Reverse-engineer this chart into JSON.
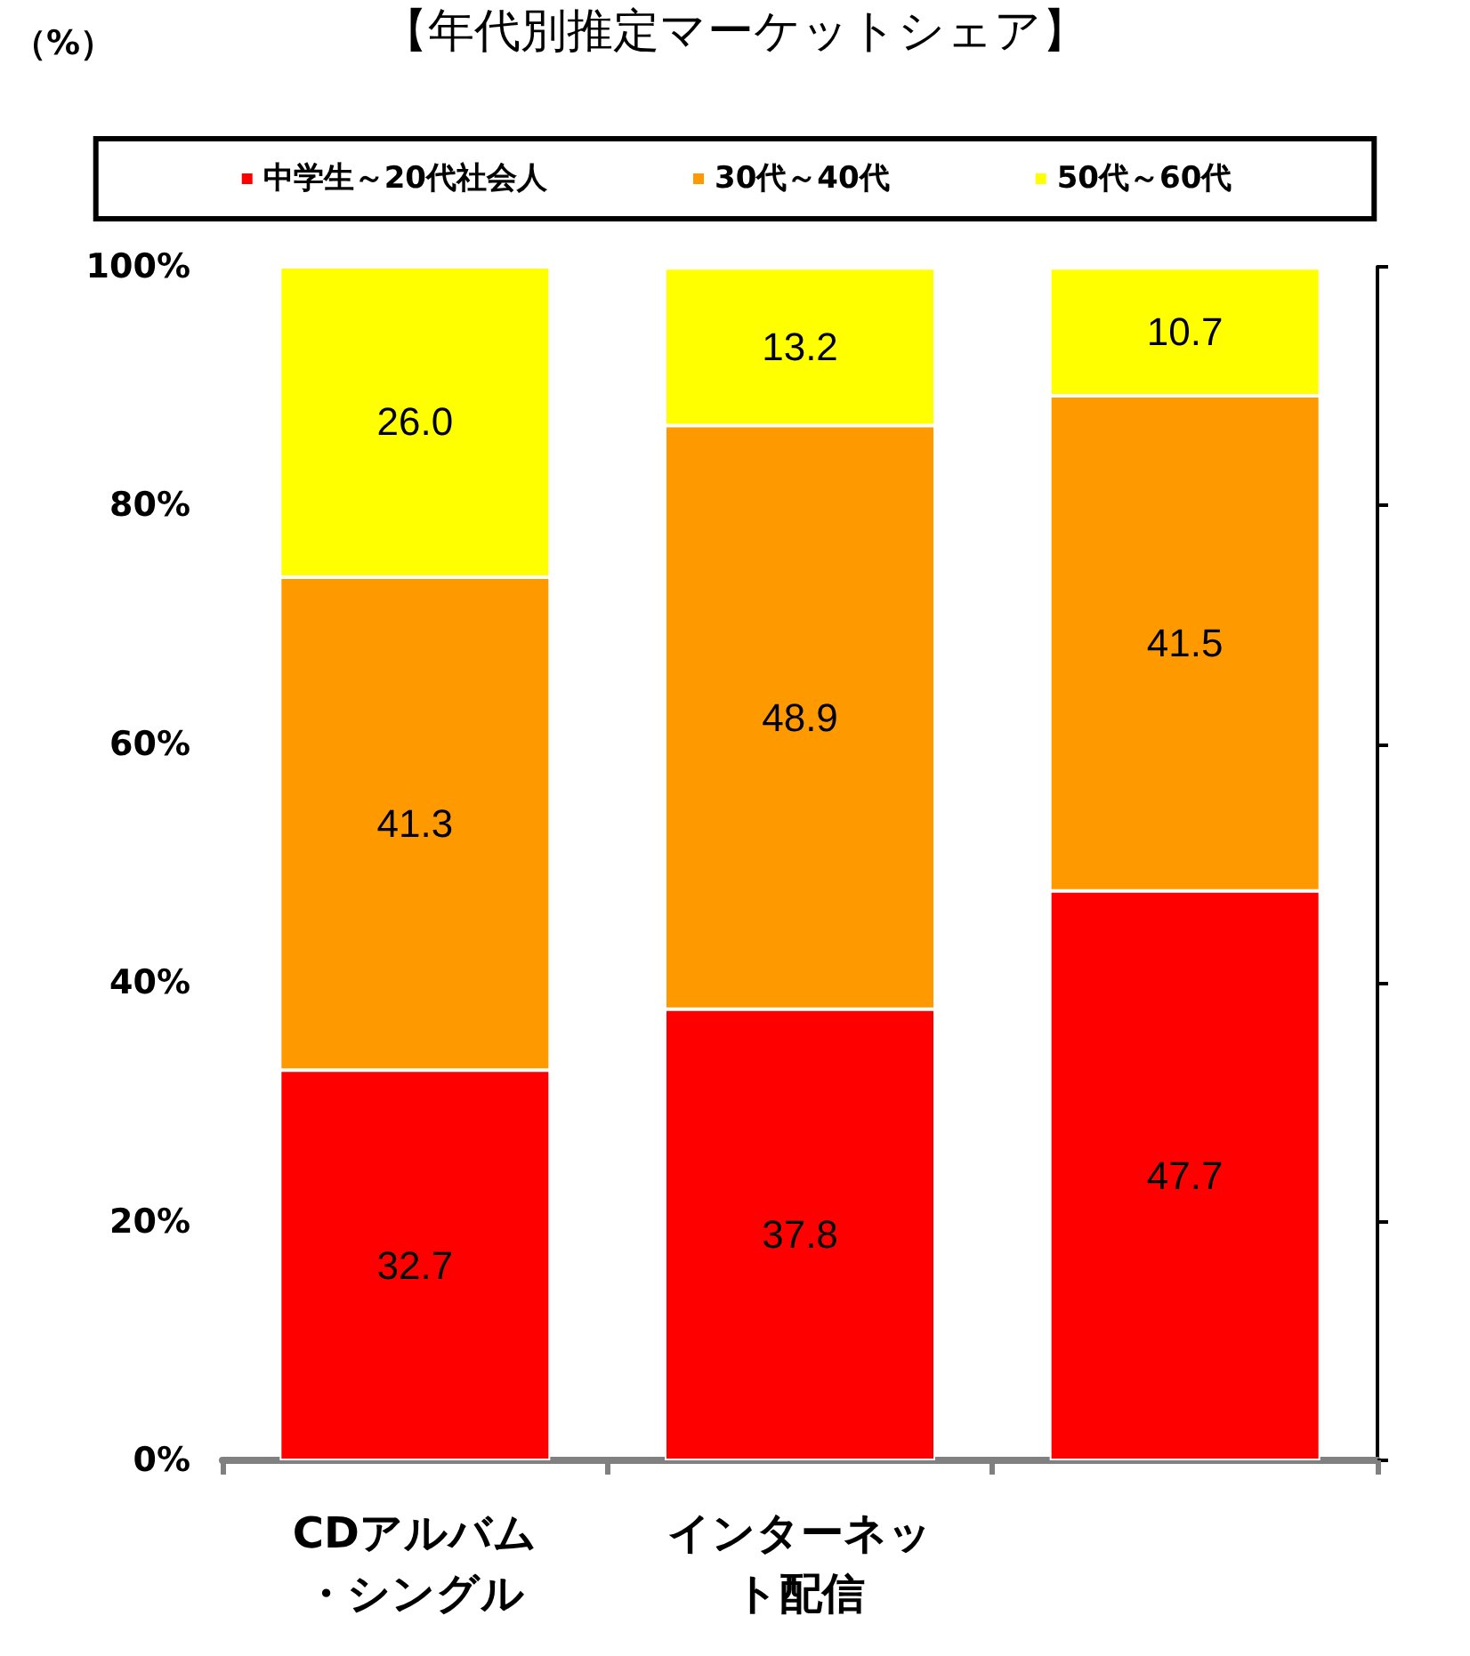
{
  "chart_data": {
    "type": "bar",
    "title": "【年代別推定マーケットシェア】",
    "annotations": [
      "（%）"
    ],
    "categories": [
      "CDアルバム・シングル",
      "インターネット配信",
      null
    ],
    "stacked": true,
    "grid": false,
    "legend": "top",
    "ylim": [
      0,
      100
    ],
    "yticks": [
      {
        "value": 0,
        "label": "0%"
      },
      {
        "value": 20,
        "label": "20%"
      },
      {
        "value": 40,
        "label": "40%"
      },
      {
        "value": 60,
        "label": "60%"
      },
      {
        "value": 80,
        "label": "80%"
      },
      {
        "value": 100,
        "label": "100%"
      }
    ],
    "series": [
      {
        "name": "中学生～20代社会人",
        "color": "#ff0000",
        "values": [
          32.7,
          37.8,
          47.7
        ],
        "value_labels": [
          "32.7",
          "37.8",
          "47.7"
        ]
      },
      {
        "name": "30代～40代",
        "color": "#ff9900",
        "values": [
          41.3,
          48.9,
          41.5
        ],
        "value_labels": [
          "41.3",
          "48.9",
          "41.5"
        ]
      },
      {
        "name": "50代～60代",
        "color": "#ffff00",
        "values": [
          26.0,
          13.2,
          10.7
        ],
        "value_labels": [
          "26.0",
          "13.2",
          "10.7"
        ]
      }
    ]
  }
}
